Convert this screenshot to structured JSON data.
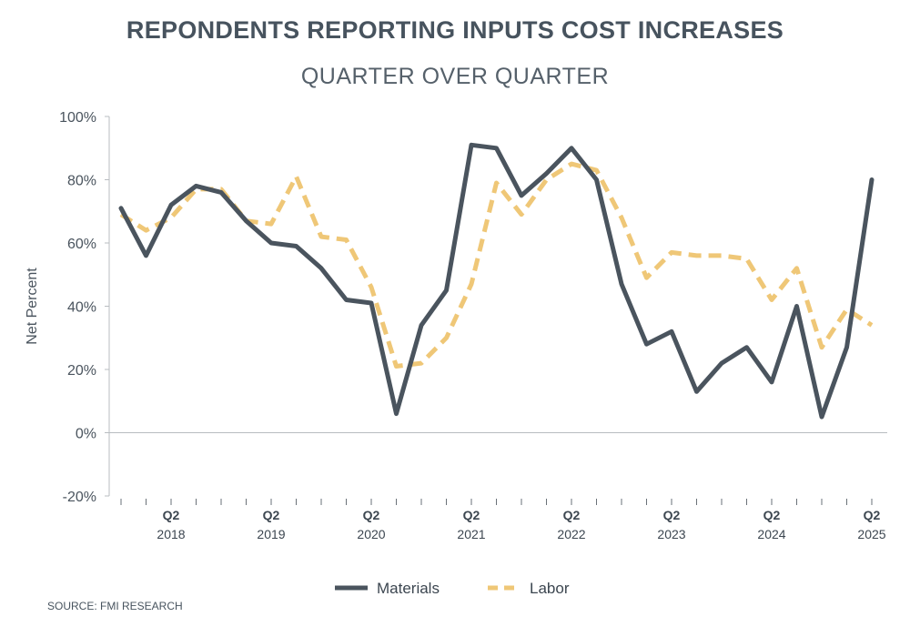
{
  "chart_data": {
    "type": "line",
    "title": "REPONDENTS REPORTING INPUTS COST INCREASES",
    "subtitle": "QUARTER OVER QUARTER",
    "ylabel": "Net Percent",
    "xlabel": "",
    "ylim": [
      -20,
      100
    ],
    "yticks": [
      -20,
      0,
      20,
      40,
      60,
      80,
      100
    ],
    "ytick_labels": [
      "-20%",
      "0%",
      "20%",
      "40%",
      "60%",
      "80%",
      "100%"
    ],
    "x_count": 31,
    "x_tick_labels": [
      {
        "index": 2,
        "quarter": "Q2",
        "year": "2018"
      },
      {
        "index": 6,
        "quarter": "Q2",
        "year": "2019"
      },
      {
        "index": 10,
        "quarter": "Q2",
        "year": "2020"
      },
      {
        "index": 14,
        "quarter": "Q2",
        "year": "2021"
      },
      {
        "index": 18,
        "quarter": "Q2",
        "year": "2022"
      },
      {
        "index": 22,
        "quarter": "Q2",
        "year": "2023"
      },
      {
        "index": 26,
        "quarter": "Q2",
        "year": "2024"
      },
      {
        "index": 30,
        "quarter": "Q2",
        "year": "2025"
      }
    ],
    "series": [
      {
        "name": "Materials",
        "color": "#4a545e",
        "style": "solid",
        "values": [
          71,
          56,
          72,
          78,
          76,
          67,
          60,
          59,
          52,
          42,
          41,
          6,
          34,
          45,
          91,
          90,
          75,
          82,
          90,
          80,
          47,
          28,
          32,
          13,
          22,
          27,
          16,
          40,
          5,
          27,
          80
        ]
      },
      {
        "name": "Labor",
        "color": "#efc777",
        "style": "dashed",
        "values": [
          69,
          64,
          68,
          77,
          77,
          67,
          66,
          81,
          62,
          61,
          46,
          21,
          22,
          30,
          47,
          79,
          69,
          80,
          85,
          83,
          68,
          49,
          57,
          56,
          56,
          55,
          42,
          52,
          27,
          39,
          34
        ]
      }
    ],
    "legend": "bottom-center",
    "grid": false
  },
  "source": "SOURCE: FMI RESEARCH"
}
